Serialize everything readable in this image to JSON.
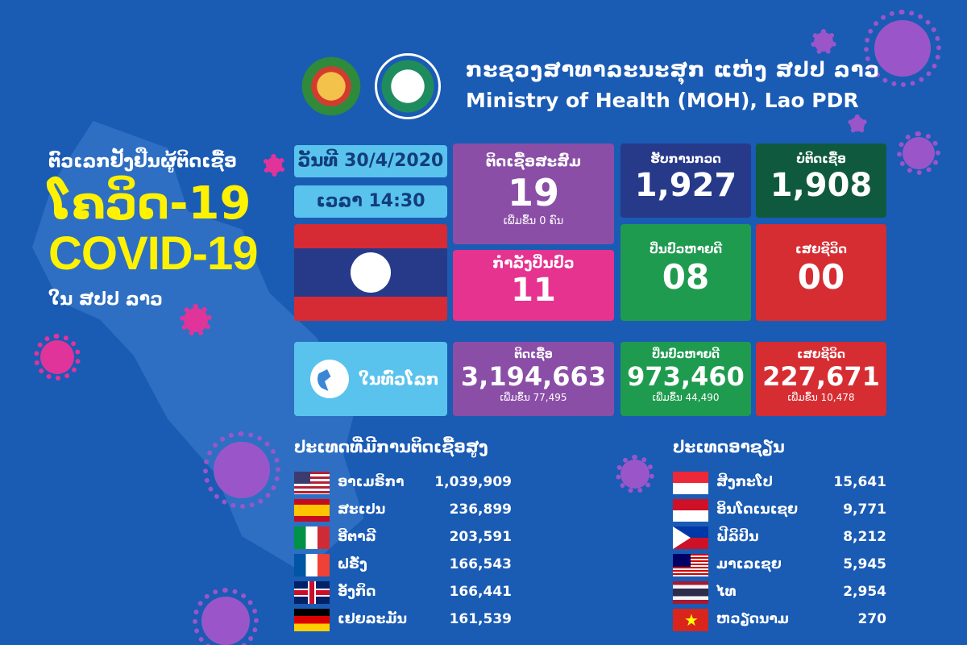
{
  "header": {
    "ministry_lao": "ກະຊວງສາທາລະນະສຸກ ແຫ່ງ ສປປ ລາວ",
    "ministry_en": "Ministry of Health (MOH), Lao PDR"
  },
  "title": {
    "tally_lao": "ຕົວເລກຢັ້ງຢືນຜູ້ຕິດເຊື້ອ",
    "covid_lao": "ໂຄວິດ-19",
    "covid_en": "COVID-19",
    "in_lao": "ໃນ ສປປ ລາວ"
  },
  "date_time": {
    "date": "ວັນທີ 30/4/2020",
    "time": "ເວລາ 14:30"
  },
  "lao_stats": {
    "cumulative": {
      "label": "ຕິດເຊື້ອສະສົມ",
      "value": "19",
      "sub": "ເພີ່ມຂຶ້ນ 0 ຄົນ"
    },
    "active": {
      "label": "ກຳລັງປິ່ນປົວ",
      "value": "11"
    },
    "tested": {
      "label": "ຮັບການກວດ",
      "value": "1,927"
    },
    "negative": {
      "label": "ບໍ່ຕິດເຊື້ອ",
      "value": "1,908"
    },
    "recovered": {
      "label": "ປິ່ນປົວຫາຍດີ",
      "value": "08"
    },
    "deaths": {
      "label": "ເສຍຊີວິດ",
      "value": "00"
    }
  },
  "world_stats": {
    "label": "ໃນທົ່ວໂລກ",
    "infected": {
      "label": "ຕິດເຊື້ອ",
      "value": "3,194,663",
      "sub": "ເພີ່ມຂຶ້ນ 77,495"
    },
    "recovered": {
      "label": "ປິ່ນປົວຫາຍດີ",
      "value": "973,460",
      "sub": "ເພີ່ມຂຶ້ນ 44,490"
    },
    "deaths": {
      "label": "ເສຍຊີວິດ",
      "value": "227,671",
      "sub": "ເພີ່ມຂຶ້ນ 10,478"
    }
  },
  "top_countries": {
    "title": "ປະເທດທີ່ມີການຕິດເຊື້ອສູງ",
    "rows": [
      {
        "name": "ອາເມຣິກາ",
        "value": "1,039,909",
        "flag": "us"
      },
      {
        "name": "ສະເປນ",
        "value": "236,899",
        "flag": "es"
      },
      {
        "name": "ອີຕາລີ",
        "value": "203,591",
        "flag": "it"
      },
      {
        "name": "ຝຣັ່ງ",
        "value": "166,543",
        "flag": "fr"
      },
      {
        "name": "ອັງກິດ",
        "value": "166,441",
        "flag": "uk"
      },
      {
        "name": "ເຢຍລະມັນ",
        "value": "161,539",
        "flag": "de"
      }
    ]
  },
  "asean_countries": {
    "title": "ປະເທດອາຊຽນ",
    "rows": [
      {
        "name": "ສິງກະໂປ",
        "value": "15,641",
        "flag": "sg"
      },
      {
        "name": "ອິນໂດເນເຊຍ",
        "value": "9,771",
        "flag": "id"
      },
      {
        "name": "ຟີລິປິນ",
        "value": "8,212",
        "flag": "ph"
      },
      {
        "name": "ມາເລເຊຍ",
        "value": "5,945",
        "flag": "my"
      },
      {
        "name": "ໄທ",
        "value": "2,954",
        "flag": "th"
      },
      {
        "name": "ຫວຽດນາມ",
        "value": "270",
        "flag": "vn"
      }
    ]
  },
  "colors": {
    "background": "#1a5bb4",
    "accent_yellow": "#fff200",
    "light_blue": "#59c3ee",
    "purple": "#8b4ea7",
    "pink": "#e5338f",
    "navy": "#273a8a",
    "dark_green": "#0f5a3f",
    "green": "#1f9b4f",
    "red": "#d62d32"
  }
}
